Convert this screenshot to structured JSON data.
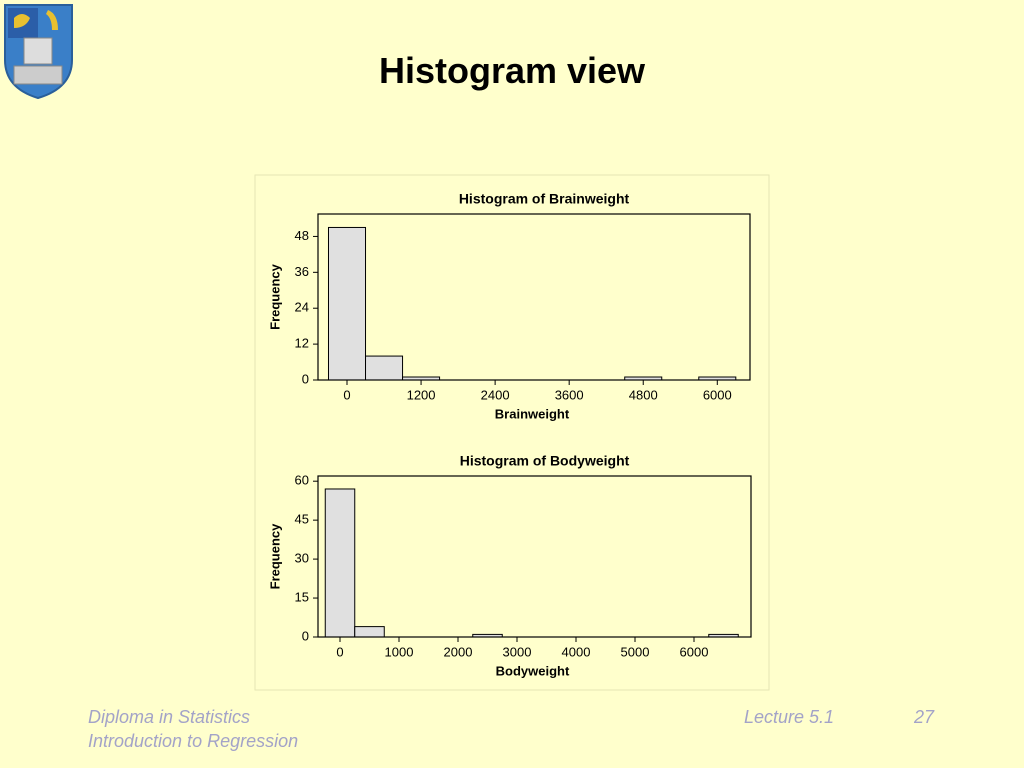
{
  "title": "Histogram view",
  "footer": {
    "course": "Diploma in Statistics",
    "topic": "Introduction to Regression",
    "lecture": "Lecture 5.1",
    "page": "27"
  },
  "chart_data": [
    {
      "type": "histogram",
      "title": "Histogram of Brainweight",
      "xlabel": "Brainweight",
      "ylabel": "Frequency",
      "bins": [
        -300,
        300,
        900,
        1500,
        2100,
        2700,
        3300,
        3900,
        4500,
        5100,
        5700,
        6300
      ],
      "counts": [
        51,
        8,
        1,
        0,
        0,
        0,
        0,
        0,
        1,
        0,
        1
      ],
      "color": "#e0e0e0",
      "xlim": [
        -470,
        6530
      ],
      "ylim": [
        0,
        55.5
      ],
      "xticks": [
        0,
        1200,
        2400,
        3600,
        4800,
        6000
      ],
      "yticks": [
        0,
        12,
        24,
        36,
        48
      ]
    },
    {
      "type": "histogram",
      "title": "Histogram of Bodyweight",
      "xlabel": "Bodyweight",
      "ylabel": "Frequency",
      "bins": [
        -250,
        250,
        750,
        1250,
        1750,
        2250,
        2750,
        3250,
        3750,
        4250,
        4750,
        5250,
        5750,
        6250,
        6750
      ],
      "counts": [
        57,
        4,
        0,
        0,
        0,
        1,
        0,
        0,
        0,
        0,
        0,
        0,
        0,
        1
      ],
      "color": "#e0e0e0",
      "xlim": [
        -373,
        6966
      ],
      "ylim": [
        0,
        62
      ],
      "xticks": [
        0,
        1000,
        2000,
        3000,
        4000,
        5000,
        6000
      ],
      "yticks": [
        0,
        15,
        30,
        45,
        60
      ]
    }
  ]
}
